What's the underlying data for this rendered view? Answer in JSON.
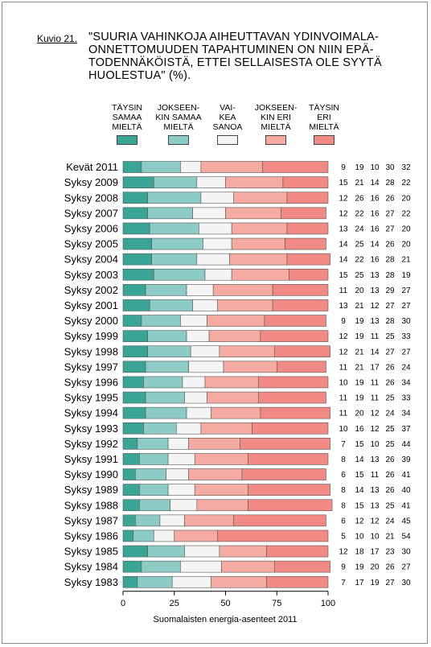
{
  "figure_label": "Kuvio 21.",
  "title_lines": [
    "\"SUURIA VAHINKOJA AIHEUTTAVAN YDINVOIMALA-",
    "ONNETTOMUUDEN TAPAHTUMINEN ON NIIN EPÄ-",
    "TODENNÄKÖISTÄ, ETTEI SELLAISESTA OLE SYYTÄ",
    "HUOLESTUA\" (%)."
  ],
  "source": "Suomalaisten energia-asenteet 2011",
  "chart_data": {
    "type": "bar",
    "orientation": "horizontal",
    "stacked": true,
    "xlim": [
      0,
      100
    ],
    "xticks": [
      "0",
      "25",
      "50",
      "75",
      "100"
    ],
    "categories": [
      "Kevät 2011",
      "Syksy 2009",
      "Syksy 2008",
      "Syksy 2007",
      "Syksy 2006",
      "Syksy 2005",
      "Syksy 2004",
      "Syksy 2003",
      "Syksy 2002",
      "Syksy 2001",
      "Syksy 2000",
      "Syksy 1999",
      "Syksy 1998",
      "Syksy 1997",
      "Syksy 1996",
      "Syksy 1995",
      "Syksy 1994",
      "Syksy 1993",
      "Syksy 1992",
      "Syksy 1991",
      "Syksy 1990",
      "Syksy 1989",
      "Syksy 1988",
      "Syksy 1987",
      "Syksy 1986",
      "Syksy 1985",
      "Syksy 1984",
      "Syksy 1983"
    ],
    "series": [
      {
        "name": "TÄYSIN\nSAMAA\nMIELTÄ",
        "color": "#3aa597",
        "values": [
          9,
          15,
          12,
          12,
          13,
          14,
          14,
          15,
          11,
          13,
          9,
          12,
          12,
          11,
          10,
          11,
          11,
          10,
          7,
          8,
          6,
          8,
          8,
          6,
          5,
          12,
          9,
          7
        ]
      },
      {
        "name": "JOKSEEN-\nKIN SAMAA\nMIELTÄ",
        "color": "#8ccbc6",
        "values": [
          19,
          21,
          26,
          22,
          24,
          25,
          22,
          25,
          20,
          21,
          19,
          19,
          21,
          21,
          19,
          19,
          20,
          16,
          15,
          14,
          15,
          14,
          15,
          12,
          10,
          18,
          19,
          17
        ]
      },
      {
        "name": "VAI-\nKEA\nSANOA",
        "color": "#f4f4f4",
        "values": [
          10,
          14,
          16,
          16,
          16,
          14,
          16,
          13,
          13,
          12,
          13,
          11,
          14,
          17,
          11,
          11,
          12,
          12,
          10,
          13,
          11,
          13,
          13,
          12,
          10,
          17,
          20,
          19
        ]
      },
      {
        "name": "JOKSEEN-\nKIN ERI\nMIELTÄ",
        "color": "#f6aba2",
        "values": [
          30,
          28,
          26,
          27,
          27,
          26,
          28,
          28,
          29,
          27,
          28,
          25,
          27,
          26,
          26,
          25,
          24,
          25,
          25,
          26,
          26,
          26,
          25,
          24,
          21,
          23,
          26,
          27
        ]
      },
      {
        "name": "TÄYSIN\nERI\nMIELTÄ",
        "color": "#f18a84",
        "values": [
          32,
          22,
          20,
          22,
          20,
          20,
          21,
          19,
          27,
          27,
          30,
          33,
          27,
          24,
          34,
          33,
          34,
          37,
          44,
          39,
          41,
          40,
          41,
          45,
          54,
          30,
          27,
          30
        ]
      }
    ]
  }
}
